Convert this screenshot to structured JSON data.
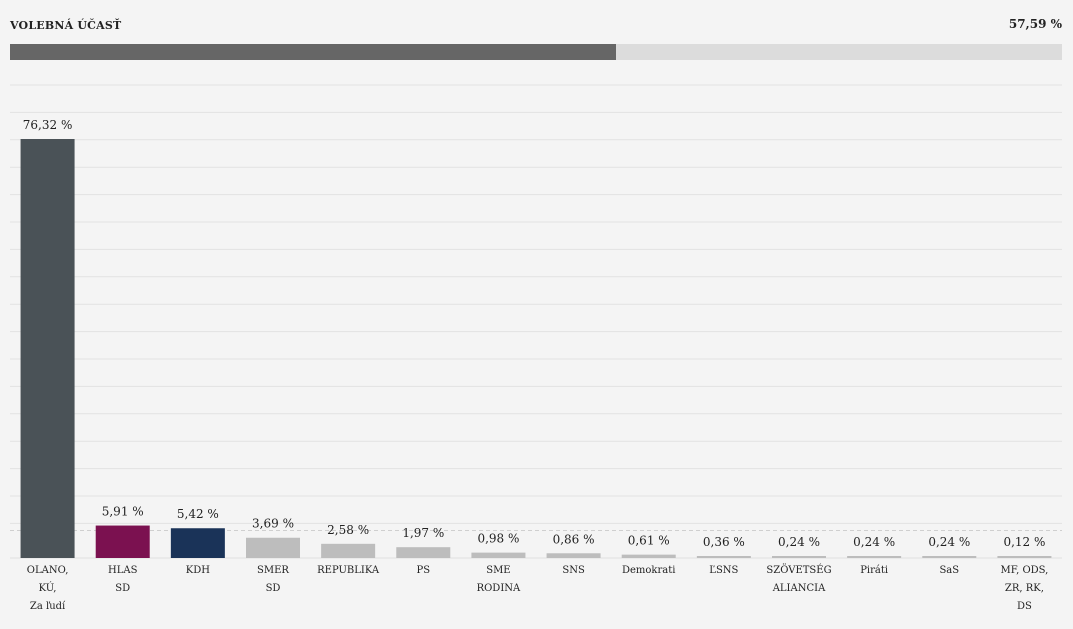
{
  "turnout": {
    "label": "VOLEBNÁ ÚČASŤ",
    "value_text": "57,59 %",
    "value": 57.59,
    "fill_color": "#666666",
    "track_color": "#dcdcdc"
  },
  "chart_data": {
    "type": "bar",
    "categories": [
      [
        "OLANO,",
        "KÚ,",
        "Za ľudí"
      ],
      [
        "HLAS",
        "SD"
      ],
      [
        "KDH"
      ],
      [
        "SMER",
        "SD"
      ],
      [
        "REPUBLIKA"
      ],
      [
        "PS"
      ],
      [
        "SME",
        "RODINA"
      ],
      [
        "SNS"
      ],
      [
        "Demokrati"
      ],
      [
        "ĽSNS"
      ],
      [
        "SZÖVETSÉG",
        "ALIANCIA"
      ],
      [
        "Piráti"
      ],
      [
        "SaS"
      ],
      [
        "MF, ODS,",
        "ZR, RK,",
        "DS"
      ]
    ],
    "values": [
      76.32,
      5.91,
      5.42,
      3.69,
      2.58,
      1.97,
      0.98,
      0.86,
      0.61,
      0.36,
      0.24,
      0.24,
      0.24,
      0.12
    ],
    "value_labels": [
      "76,32 %",
      "5,91 %",
      "5,42 %",
      "3,69 %",
      "2,58 %",
      "1,97 %",
      "0,98 %",
      "0,86 %",
      "0,61 %",
      "0,36 %",
      "0,24 %",
      "0,24 %",
      "0,24 %",
      "0,12 %"
    ],
    "colors": [
      "#4a5257",
      "#7b1150",
      "#1a3358",
      "#bdbdbd",
      "#bdbdbd",
      "#bdbdbd",
      "#bdbdbd",
      "#bdbdbd",
      "#bdbdbd",
      "#bdbdbd",
      "#bdbdbd",
      "#bdbdbd",
      "#bdbdbd",
      "#bdbdbd"
    ],
    "threshold": 5,
    "grid": true,
    "title": "",
    "xlabel": "",
    "ylabel": ""
  }
}
